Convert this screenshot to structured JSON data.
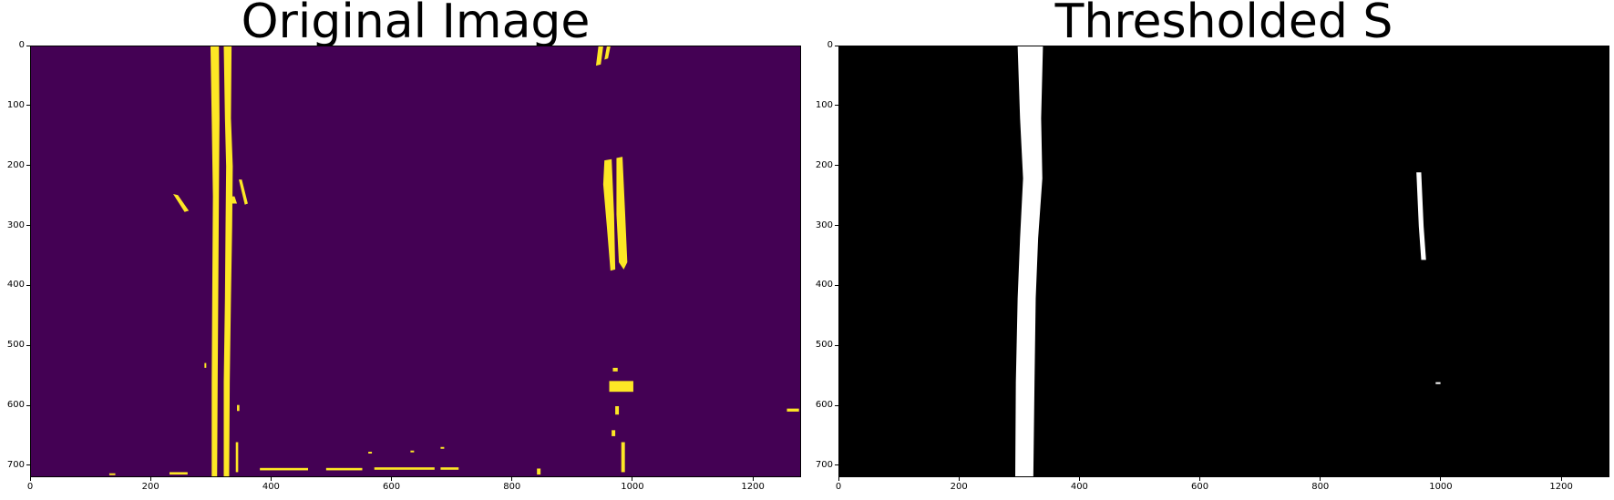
{
  "figure": {
    "panels": [
      {
        "id": "left",
        "title": "Original Image",
        "background_color": "#440154",
        "foreground_color": "#fde725",
        "xticks": [
          "0",
          "200",
          "400",
          "600",
          "800",
          "1000",
          "1200"
        ],
        "yticks": [
          "0",
          "100",
          "200",
          "300",
          "400",
          "500",
          "600",
          "700"
        ]
      },
      {
        "id": "right",
        "title": "Thresholded S",
        "background_color": "#000000",
        "foreground_color": "#ffffff",
        "xticks": [
          "0",
          "200",
          "400",
          "600",
          "800",
          "1000",
          "1200"
        ],
        "yticks": [
          "0",
          "100",
          "200",
          "300",
          "400",
          "500",
          "600",
          "700"
        ]
      }
    ],
    "image_width": 1280,
    "image_height": 720
  }
}
